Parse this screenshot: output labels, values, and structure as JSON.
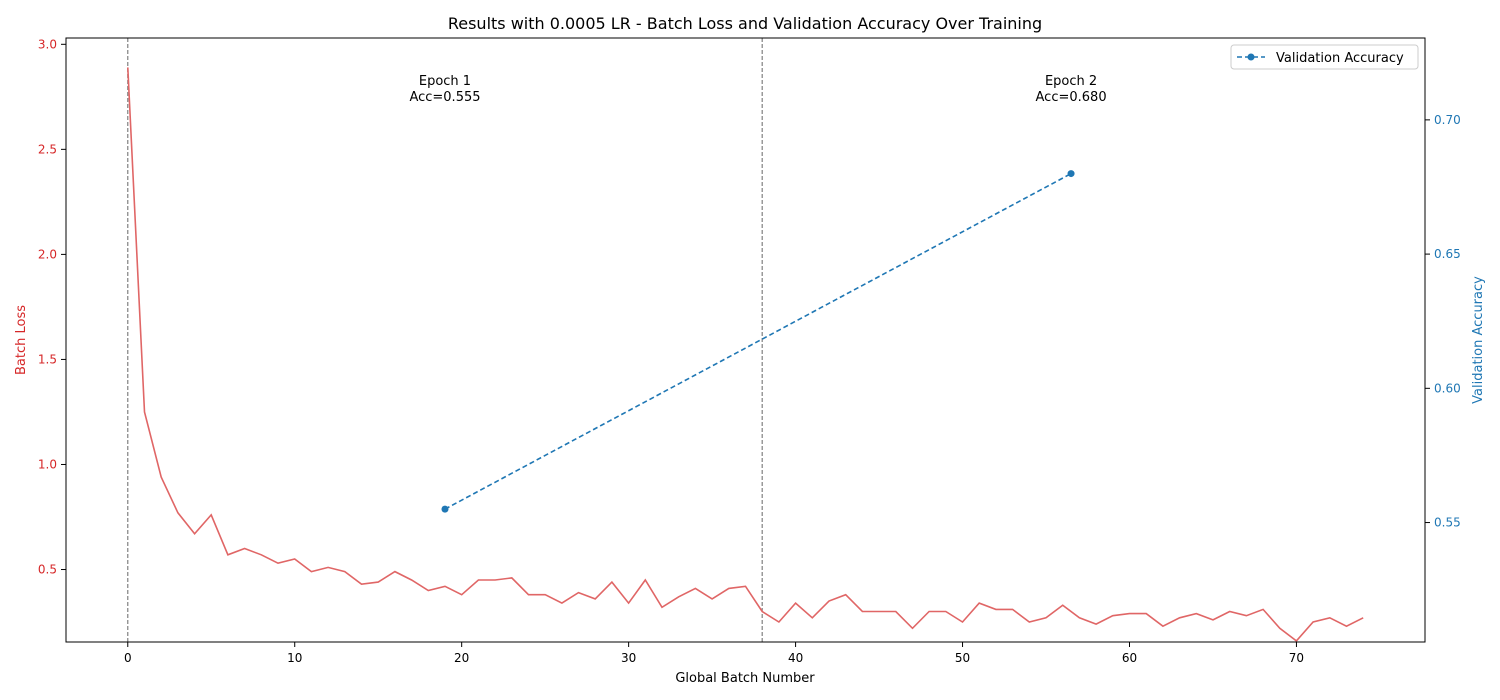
{
  "chart_data": {
    "type": "line",
    "title": "Results with 0.0005 LR - Batch Loss and Validation Accuracy Over Training",
    "xlabel": "Global Batch Number",
    "ylabel_left": "Batch Loss",
    "ylabel_right": "Validation Accuracy",
    "xlim": [
      -3.7,
      77.7
    ],
    "ylim_left": [
      0.155,
      3.03
    ],
    "ylim_right": [
      0.5055,
      0.7305
    ],
    "x_ticks": [
      0,
      10,
      20,
      30,
      40,
      50,
      60,
      70
    ],
    "y_left_ticks": [
      0.5,
      1.0,
      1.5,
      2.0,
      2.5,
      3.0
    ],
    "y_right_ticks": [
      0.55,
      0.6,
      0.65,
      0.7
    ],
    "grid": false,
    "legend_position": "top-right",
    "colors": {
      "loss": "#e06666",
      "accuracy": "#1f77b4",
      "epoch_line": "#808080",
      "left_axis": "#d62728",
      "right_axis": "#1f77b4"
    },
    "series": [
      {
        "axis": "left",
        "x": [
          0,
          1,
          2,
          3,
          4,
          5,
          6,
          7,
          8,
          9,
          10,
          11,
          12,
          13,
          14,
          15,
          16,
          17,
          18,
          19,
          20,
          21,
          22,
          23,
          24,
          25,
          26,
          27,
          28,
          29,
          30,
          31,
          32,
          33,
          34,
          35,
          36,
          37,
          38,
          39,
          40,
          41,
          42,
          43,
          44,
          45,
          46,
          47,
          48,
          49,
          50,
          51,
          52,
          53,
          54,
          55,
          56,
          57,
          58,
          59,
          60,
          61,
          62,
          63,
          64,
          65,
          66,
          67,
          68,
          69,
          70,
          71,
          72,
          73,
          74
        ],
        "values": [
          2.89,
          1.25,
          0.94,
          0.77,
          0.67,
          0.76,
          0.57,
          0.6,
          0.57,
          0.53,
          0.55,
          0.49,
          0.51,
          0.49,
          0.43,
          0.44,
          0.49,
          0.45,
          0.4,
          0.42,
          0.38,
          0.45,
          0.45,
          0.46,
          0.38,
          0.38,
          0.34,
          0.39,
          0.36,
          0.44,
          0.34,
          0.45,
          0.32,
          0.37,
          0.41,
          0.36,
          0.41,
          0.42,
          0.3,
          0.25,
          0.34,
          0.27,
          0.35,
          0.38,
          0.3,
          0.3,
          0.3,
          0.22,
          0.3,
          0.3,
          0.25,
          0.34,
          0.31,
          0.31,
          0.25,
          0.27,
          0.33,
          0.27,
          0.24,
          0.28,
          0.29,
          0.29,
          0.23,
          0.27,
          0.29,
          0.26,
          0.3,
          0.28,
          0.31,
          0.22,
          0.16,
          0.25,
          0.27,
          0.23,
          0.27
        ]
      },
      {
        "name": "Validation Accuracy",
        "axis": "right",
        "x": [
          19,
          56.5
        ],
        "values": [
          0.555,
          0.68
        ]
      }
    ],
    "epoch_boundaries": [
      0,
      38
    ],
    "annotations": [
      {
        "x": 19,
        "epoch": "Epoch 1",
        "acc": "Acc=0.555"
      },
      {
        "x": 56.5,
        "epoch": "Epoch 2",
        "acc": "Acc=0.680"
      }
    ]
  }
}
